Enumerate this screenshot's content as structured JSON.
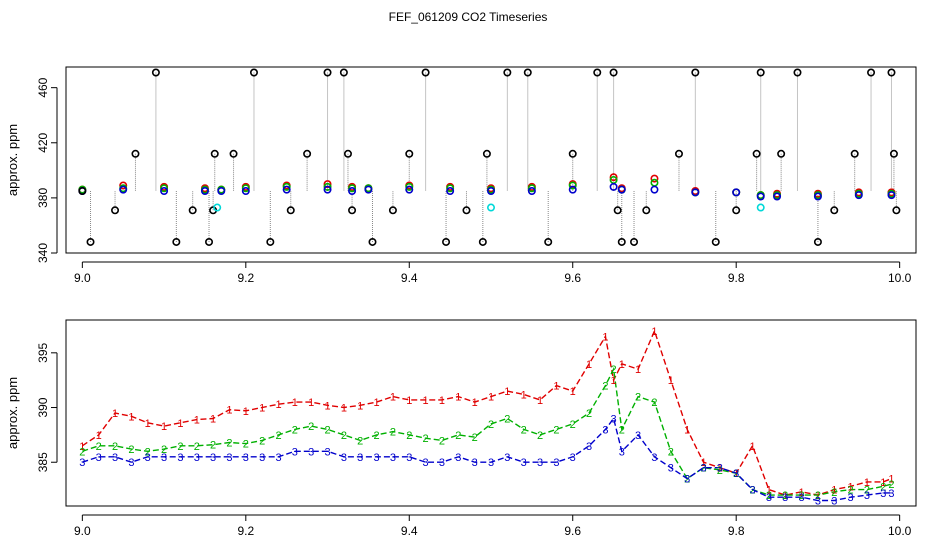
{
  "page": {
    "title": "FEF_061209  CO2 Timeseries"
  },
  "colors": {
    "red": "#e00000",
    "green": "#00b000",
    "blue": "#0000cc",
    "black": "#000000",
    "cyan": "#00d8d8",
    "stem": "#8a8a8a"
  },
  "chart_data": [
    {
      "type": "scatter",
      "title": "FEF_061209  CO2 Timeseries",
      "xlabel": "",
      "ylabel": "approx. ppm",
      "xlim": [
        8.98,
        10.02
      ],
      "ylim": [
        340,
        475
      ],
      "xticks": [
        9.0,
        9.2,
        9.4,
        9.6,
        9.8,
        10.0
      ],
      "xtick_labels": [
        "9.0",
        "9.2",
        "9.4",
        "9.6",
        "9.8",
        "10.0"
      ],
      "yticks": [
        340,
        380,
        420,
        460
      ],
      "ytick_labels": [
        "340",
        "380",
        "420",
        "460"
      ],
      "grid": false,
      "series": [
        {
          "color_key": "red",
          "marker": "circle",
          "x": [
            9.0,
            9.05,
            9.1,
            9.15,
            9.17,
            9.2,
            9.25,
            9.3,
            9.33,
            9.35,
            9.4,
            9.45,
            9.5,
            9.55,
            9.6,
            9.65,
            9.66,
            9.7,
            9.75,
            9.8,
            9.83,
            9.85,
            9.9,
            9.95,
            9.99
          ],
          "y": [
            386,
            389,
            388,
            387,
            386,
            388,
            389,
            390,
            388,
            387,
            389,
            388,
            387,
            388,
            390,
            395,
            387,
            394,
            385,
            384,
            382,
            383,
            383,
            384,
            384
          ]
        },
        {
          "color_key": "green",
          "marker": "circle",
          "x": [
            9.0,
            9.05,
            9.1,
            9.15,
            9.17,
            9.2,
            9.25,
            9.3,
            9.33,
            9.35,
            9.4,
            9.45,
            9.5,
            9.55,
            9.6,
            9.65,
            9.66,
            9.7,
            9.75,
            9.8,
            9.83,
            9.85,
            9.9,
            9.95,
            9.99
          ],
          "y": [
            386,
            387,
            387,
            386,
            386,
            387,
            388,
            388,
            387,
            387,
            388,
            387,
            386,
            387,
            389,
            393,
            386,
            391,
            384,
            384,
            382,
            382,
            382,
            383,
            383
          ]
        },
        {
          "color_key": "blue",
          "marker": "circle",
          "x": [
            9.0,
            9.05,
            9.1,
            9.15,
            9.17,
            9.2,
            9.25,
            9.3,
            9.33,
            9.35,
            9.4,
            9.45,
            9.5,
            9.55,
            9.6,
            9.65,
            9.66,
            9.7,
            9.75,
            9.8,
            9.83,
            9.85,
            9.9,
            9.95,
            9.99
          ],
          "y": [
            385,
            386,
            385,
            385,
            385,
            385,
            386,
            386,
            385,
            386,
            386,
            385,
            385,
            385,
            386,
            388,
            386,
            386,
            384,
            384,
            381,
            381,
            381,
            382,
            382
          ]
        },
        {
          "color_key": "black",
          "marker": "circle",
          "stems": true,
          "x": [
            9.0,
            9.01,
            9.04,
            9.065,
            9.09,
            9.115,
            9.135,
            9.155,
            9.16,
            9.162,
            9.185,
            9.21,
            9.23,
            9.255,
            9.275,
            9.3,
            9.32,
            9.325,
            9.33,
            9.355,
            9.38,
            9.4,
            9.42,
            9.445,
            9.47,
            9.49,
            9.495,
            9.52,
            9.545,
            9.57,
            9.6,
            9.63,
            9.65,
            9.655,
            9.66,
            9.675,
            9.69,
            9.73,
            9.75,
            9.775,
            9.8,
            9.825,
            9.83,
            9.855,
            9.875,
            9.9,
            9.92,
            9.945,
            9.965,
            9.99,
            9.993,
            9.996
          ],
          "y": [
            385,
            348,
            371,
            412,
            471,
            348,
            371,
            348,
            371,
            412,
            412,
            471,
            348,
            371,
            412,
            471,
            471,
            412,
            371,
            348,
            371,
            412,
            471,
            348,
            371,
            348,
            412,
            471,
            471,
            348,
            412,
            471,
            471,
            371,
            348,
            348,
            371,
            412,
            471,
            348,
            371,
            412,
            471,
            412,
            471,
            348,
            371,
            412,
            471,
            471,
            412,
            371
          ]
        },
        {
          "color_key": "cyan",
          "marker": "circle",
          "x": [
            9.165,
            9.5,
            9.83
          ],
          "y": [
            373,
            373,
            373
          ]
        }
      ]
    },
    {
      "type": "line",
      "xlabel": "",
      "ylabel": "approx. ppm",
      "xlim": [
        8.98,
        10.02
      ],
      "ylim": [
        381,
        398
      ],
      "xticks": [
        9.0,
        9.2,
        9.4,
        9.6,
        9.8,
        10.0
      ],
      "xtick_labels": [
        "9.0",
        "9.2",
        "9.4",
        "9.6",
        "9.8",
        "10.0"
      ],
      "yticks": [
        385,
        390,
        395
      ],
      "ytick_labels": [
        "385",
        "390",
        "395"
      ],
      "grid": false,
      "x": [
        9.0,
        9.02,
        9.04,
        9.06,
        9.08,
        9.1,
        9.12,
        9.14,
        9.16,
        9.18,
        9.2,
        9.22,
        9.24,
        9.26,
        9.28,
        9.3,
        9.32,
        9.34,
        9.36,
        9.38,
        9.4,
        9.42,
        9.44,
        9.46,
        9.48,
        9.5,
        9.52,
        9.54,
        9.56,
        9.58,
        9.6,
        9.62,
        9.64,
        9.65,
        9.66,
        9.68,
        9.7,
        9.72,
        9.74,
        9.76,
        9.78,
        9.8,
        9.82,
        9.84,
        9.86,
        9.88,
        9.9,
        9.92,
        9.94,
        9.96,
        9.98,
        9.99
      ],
      "series": [
        {
          "label_char": "1",
          "color_key": "red",
          "line": "dashed",
          "values": [
            386.5,
            387.5,
            389.5,
            389.2,
            388.6,
            388.3,
            388.6,
            388.9,
            389.0,
            389.8,
            389.7,
            390.0,
            390.3,
            390.5,
            390.5,
            390.2,
            390.0,
            390.2,
            390.5,
            391.0,
            390.7,
            390.7,
            390.7,
            391.0,
            390.5,
            391.0,
            391.5,
            391.2,
            390.7,
            392.0,
            391.5,
            394.0,
            396.5,
            392.5,
            394.0,
            393.5,
            397.0,
            392.5,
            388.0,
            385.0,
            384.5,
            384.0,
            386.5,
            382.5,
            382.0,
            382.3,
            382.0,
            382.5,
            382.8,
            383.2,
            383.2,
            383.5
          ]
        },
        {
          "label_char": "2",
          "color_key": "green",
          "line": "dashed",
          "values": [
            386.0,
            386.5,
            386.5,
            386.2,
            386.0,
            386.2,
            386.5,
            386.5,
            386.6,
            386.8,
            386.7,
            387.0,
            387.5,
            388.0,
            388.3,
            388.0,
            387.5,
            387.0,
            387.5,
            387.8,
            387.5,
            387.2,
            387.0,
            387.5,
            387.3,
            388.5,
            389.0,
            388.0,
            387.5,
            388.0,
            388.5,
            389.5,
            392.0,
            393.5,
            388.0,
            391.0,
            390.5,
            386.0,
            383.5,
            384.5,
            384.3,
            384.0,
            382.5,
            382.0,
            382.0,
            382.0,
            382.0,
            382.3,
            382.5,
            382.5,
            382.8,
            383.0
          ]
        },
        {
          "label_char": "3",
          "color_key": "blue",
          "line": "dashed",
          "values": [
            385.0,
            385.5,
            385.5,
            385.0,
            385.5,
            385.5,
            385.5,
            385.5,
            385.5,
            385.5,
            385.5,
            385.5,
            385.5,
            386.0,
            386.0,
            386.0,
            385.5,
            385.5,
            385.5,
            385.5,
            385.5,
            385.0,
            385.0,
            385.5,
            385.0,
            385.0,
            385.5,
            385.0,
            385.0,
            385.0,
            385.5,
            386.5,
            388.0,
            389.0,
            386.0,
            387.5,
            385.5,
            384.5,
            383.5,
            384.5,
            384.5,
            384.0,
            382.5,
            381.8,
            381.8,
            381.8,
            381.5,
            381.5,
            381.8,
            382.0,
            382.2,
            382.2
          ]
        }
      ]
    }
  ]
}
